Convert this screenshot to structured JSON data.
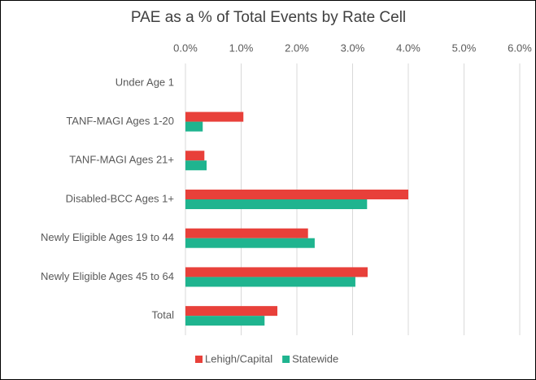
{
  "chart_data": {
    "type": "hbar",
    "title": "PAE as a % of Total Events by Rate Cell",
    "categories": [
      "Under Age 1",
      "TANF-MAGI Ages 1-20",
      "TANF-MAGI Ages 21+",
      "Disabled-BCC Ages 1+",
      "Newly Eligible Ages 19 to 44",
      "Newly Eligible Ages 45 to 64",
      "Total"
    ],
    "series": [
      {
        "name": "Lehigh/Capital",
        "color": "#e8403a",
        "values": [
          0,
          1.04,
          0.34,
          4.0,
          2.2,
          3.27,
          1.65
        ]
      },
      {
        "name": "Statewide",
        "color": "#1fb48f",
        "values": [
          0,
          0.31,
          0.38,
          3.26,
          2.32,
          3.05,
          1.42
        ]
      }
    ],
    "xlim": [
      0,
      6
    ],
    "xticks": [
      {
        "value": 0,
        "label": "0.0%"
      },
      {
        "value": 1,
        "label": "1.0%"
      },
      {
        "value": 2,
        "label": "2.0%"
      },
      {
        "value": 3,
        "label": "3.0%"
      },
      {
        "value": 4,
        "label": "4.0%"
      },
      {
        "value": 5,
        "label": "5.0%"
      },
      {
        "value": 6,
        "label": "6.0%"
      }
    ],
    "grid": true,
    "legend": "bottom"
  }
}
